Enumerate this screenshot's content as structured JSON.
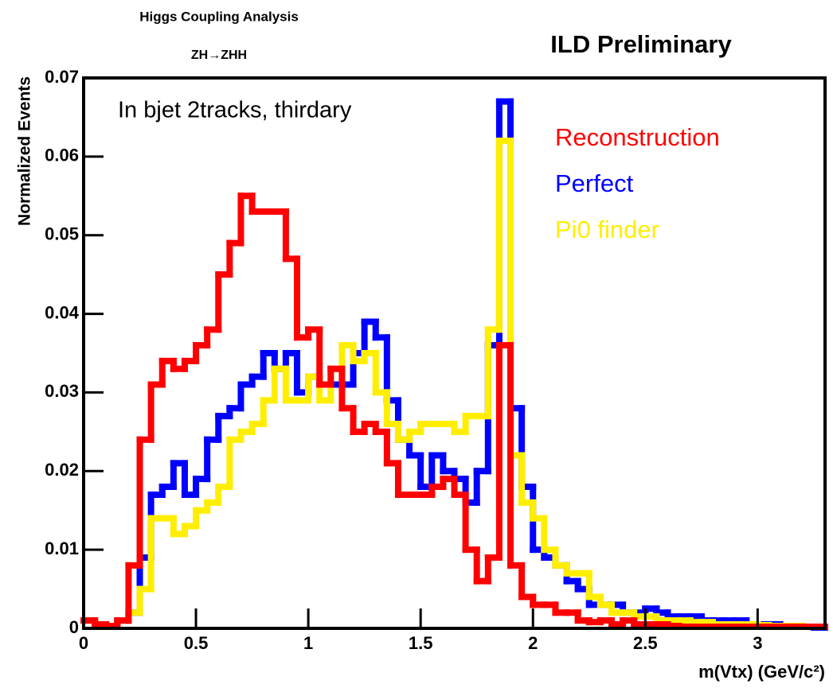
{
  "chart_data": {
    "type": "histogram",
    "title": "Higgs Coupling Analysis",
    "subtitle": "ZH→ZHH",
    "watermark": "ILD Preliminary",
    "annotation": "In bjet 2tracks, thirdary",
    "x_label": "m(Vtx) (GeV/c²)",
    "y_label": "Normalized Events",
    "bins": [
      0,
      0.05,
      0.1,
      0.15,
      0.2,
      0.25,
      0.3,
      0.35,
      0.4,
      0.45,
      0.5,
      0.55,
      0.6,
      0.65,
      0.7,
      0.75,
      0.8,
      0.85,
      0.9,
      0.95,
      1.0,
      1.05,
      1.1,
      1.15,
      1.2,
      1.25,
      1.3,
      1.35,
      1.4,
      1.45,
      1.5,
      1.55,
      1.6,
      1.65,
      1.7,
      1.75,
      1.8,
      1.85,
      1.9,
      1.95,
      2.0,
      2.05,
      2.1,
      2.15,
      2.2,
      2.25,
      2.3,
      2.35,
      2.4,
      2.45,
      2.5,
      2.55,
      2.6,
      2.65,
      2.7,
      2.75,
      2.8,
      2.85,
      2.9,
      2.95,
      3.0,
      3.05,
      3.1,
      3.15,
      3.2,
      3.25,
      3.3
    ],
    "series": [
      {
        "name": "Reconstruction",
        "color": "#ff0000",
        "values": [
          0.001,
          0.0005,
          0.0003,
          0.001,
          0.008,
          0.024,
          0.031,
          0.034,
          0.033,
          0.034,
          0.036,
          0.038,
          0.045,
          0.049,
          0.055,
          0.053,
          0.053,
          0.053,
          0.047,
          0.037,
          0.038,
          0.031,
          0.033,
          0.028,
          0.025,
          0.026,
          0.025,
          0.021,
          0.017,
          0.017,
          0.017,
          0.018,
          0.019,
          0.017,
          0.01,
          0.006,
          0.009,
          0.036,
          0.008,
          0.004,
          0.003,
          0.003,
          0.002,
          0.002,
          0.001,
          0.0008,
          0.001,
          0.0005,
          0.001,
          0.0005,
          0.0005,
          0.0005,
          0.0003,
          0.0002,
          0.0002,
          0.0002,
          0.0002,
          0.0002,
          0.0002,
          0.0002,
          0.0002,
          0.0002,
          0.0002,
          0.0002,
          0.0002,
          0.0002
        ]
      },
      {
        "name": "Perfect",
        "color": "#0000ff",
        "values": [
          0.001,
          0.0005,
          0.0003,
          0.001,
          0.002,
          0.009,
          0.017,
          0.018,
          0.021,
          0.017,
          0.019,
          0.024,
          0.027,
          0.028,
          0.031,
          0.032,
          0.035,
          0.033,
          0.035,
          0.03,
          0.032,
          0.031,
          0.031,
          0.031,
          0.035,
          0.039,
          0.037,
          0.029,
          0.024,
          0.022,
          0.018,
          0.022,
          0.02,
          0.019,
          0.016,
          0.02,
          0.036,
          0.067,
          0.028,
          0.018,
          0.01,
          0.009,
          0.008,
          0.006,
          0.005,
          0.003,
          0.003,
          0.003,
          0.002,
          0.002,
          0.0025,
          0.002,
          0.0015,
          0.0015,
          0.0015,
          0.001,
          0.001,
          0.001,
          0.001,
          0.0005,
          0.0005,
          0.0005,
          0.0003,
          0.0002,
          0.0002,
          0.0001
        ]
      },
      {
        "name": "Pi0 finder",
        "color": "#ffee00",
        "values": [
          0.001,
          0.0005,
          0.0003,
          0.001,
          0.002,
          0.005,
          0.014,
          0.014,
          0.012,
          0.013,
          0.015,
          0.016,
          0.018,
          0.024,
          0.025,
          0.026,
          0.029,
          0.033,
          0.029,
          0.029,
          0.032,
          0.029,
          0.033,
          0.036,
          0.034,
          0.035,
          0.03,
          0.026,
          0.024,
          0.025,
          0.026,
          0.026,
          0.026,
          0.025,
          0.027,
          0.027,
          0.038,
          0.062,
          0.022,
          0.016,
          0.014,
          0.01,
          0.008,
          0.007,
          0.007,
          0.004,
          0.003,
          0.002,
          0.002,
          0.0015,
          0.0015,
          0.001,
          0.001,
          0.001,
          0.0008,
          0.0008,
          0.0005,
          0.0005,
          0.0005,
          0.0005,
          0.0004,
          0.0003,
          0.0003,
          0.0003,
          0.0002,
          0.0002
        ]
      }
    ],
    "xlim": [
      0,
      3.3
    ],
    "ylim": [
      0,
      0.07
    ],
    "xticks": [
      0,
      0.5,
      1,
      1.5,
      2,
      2.5,
      3
    ],
    "yticks": [
      0,
      0.01,
      0.02,
      0.03,
      0.04,
      0.05,
      0.06,
      0.07
    ]
  }
}
